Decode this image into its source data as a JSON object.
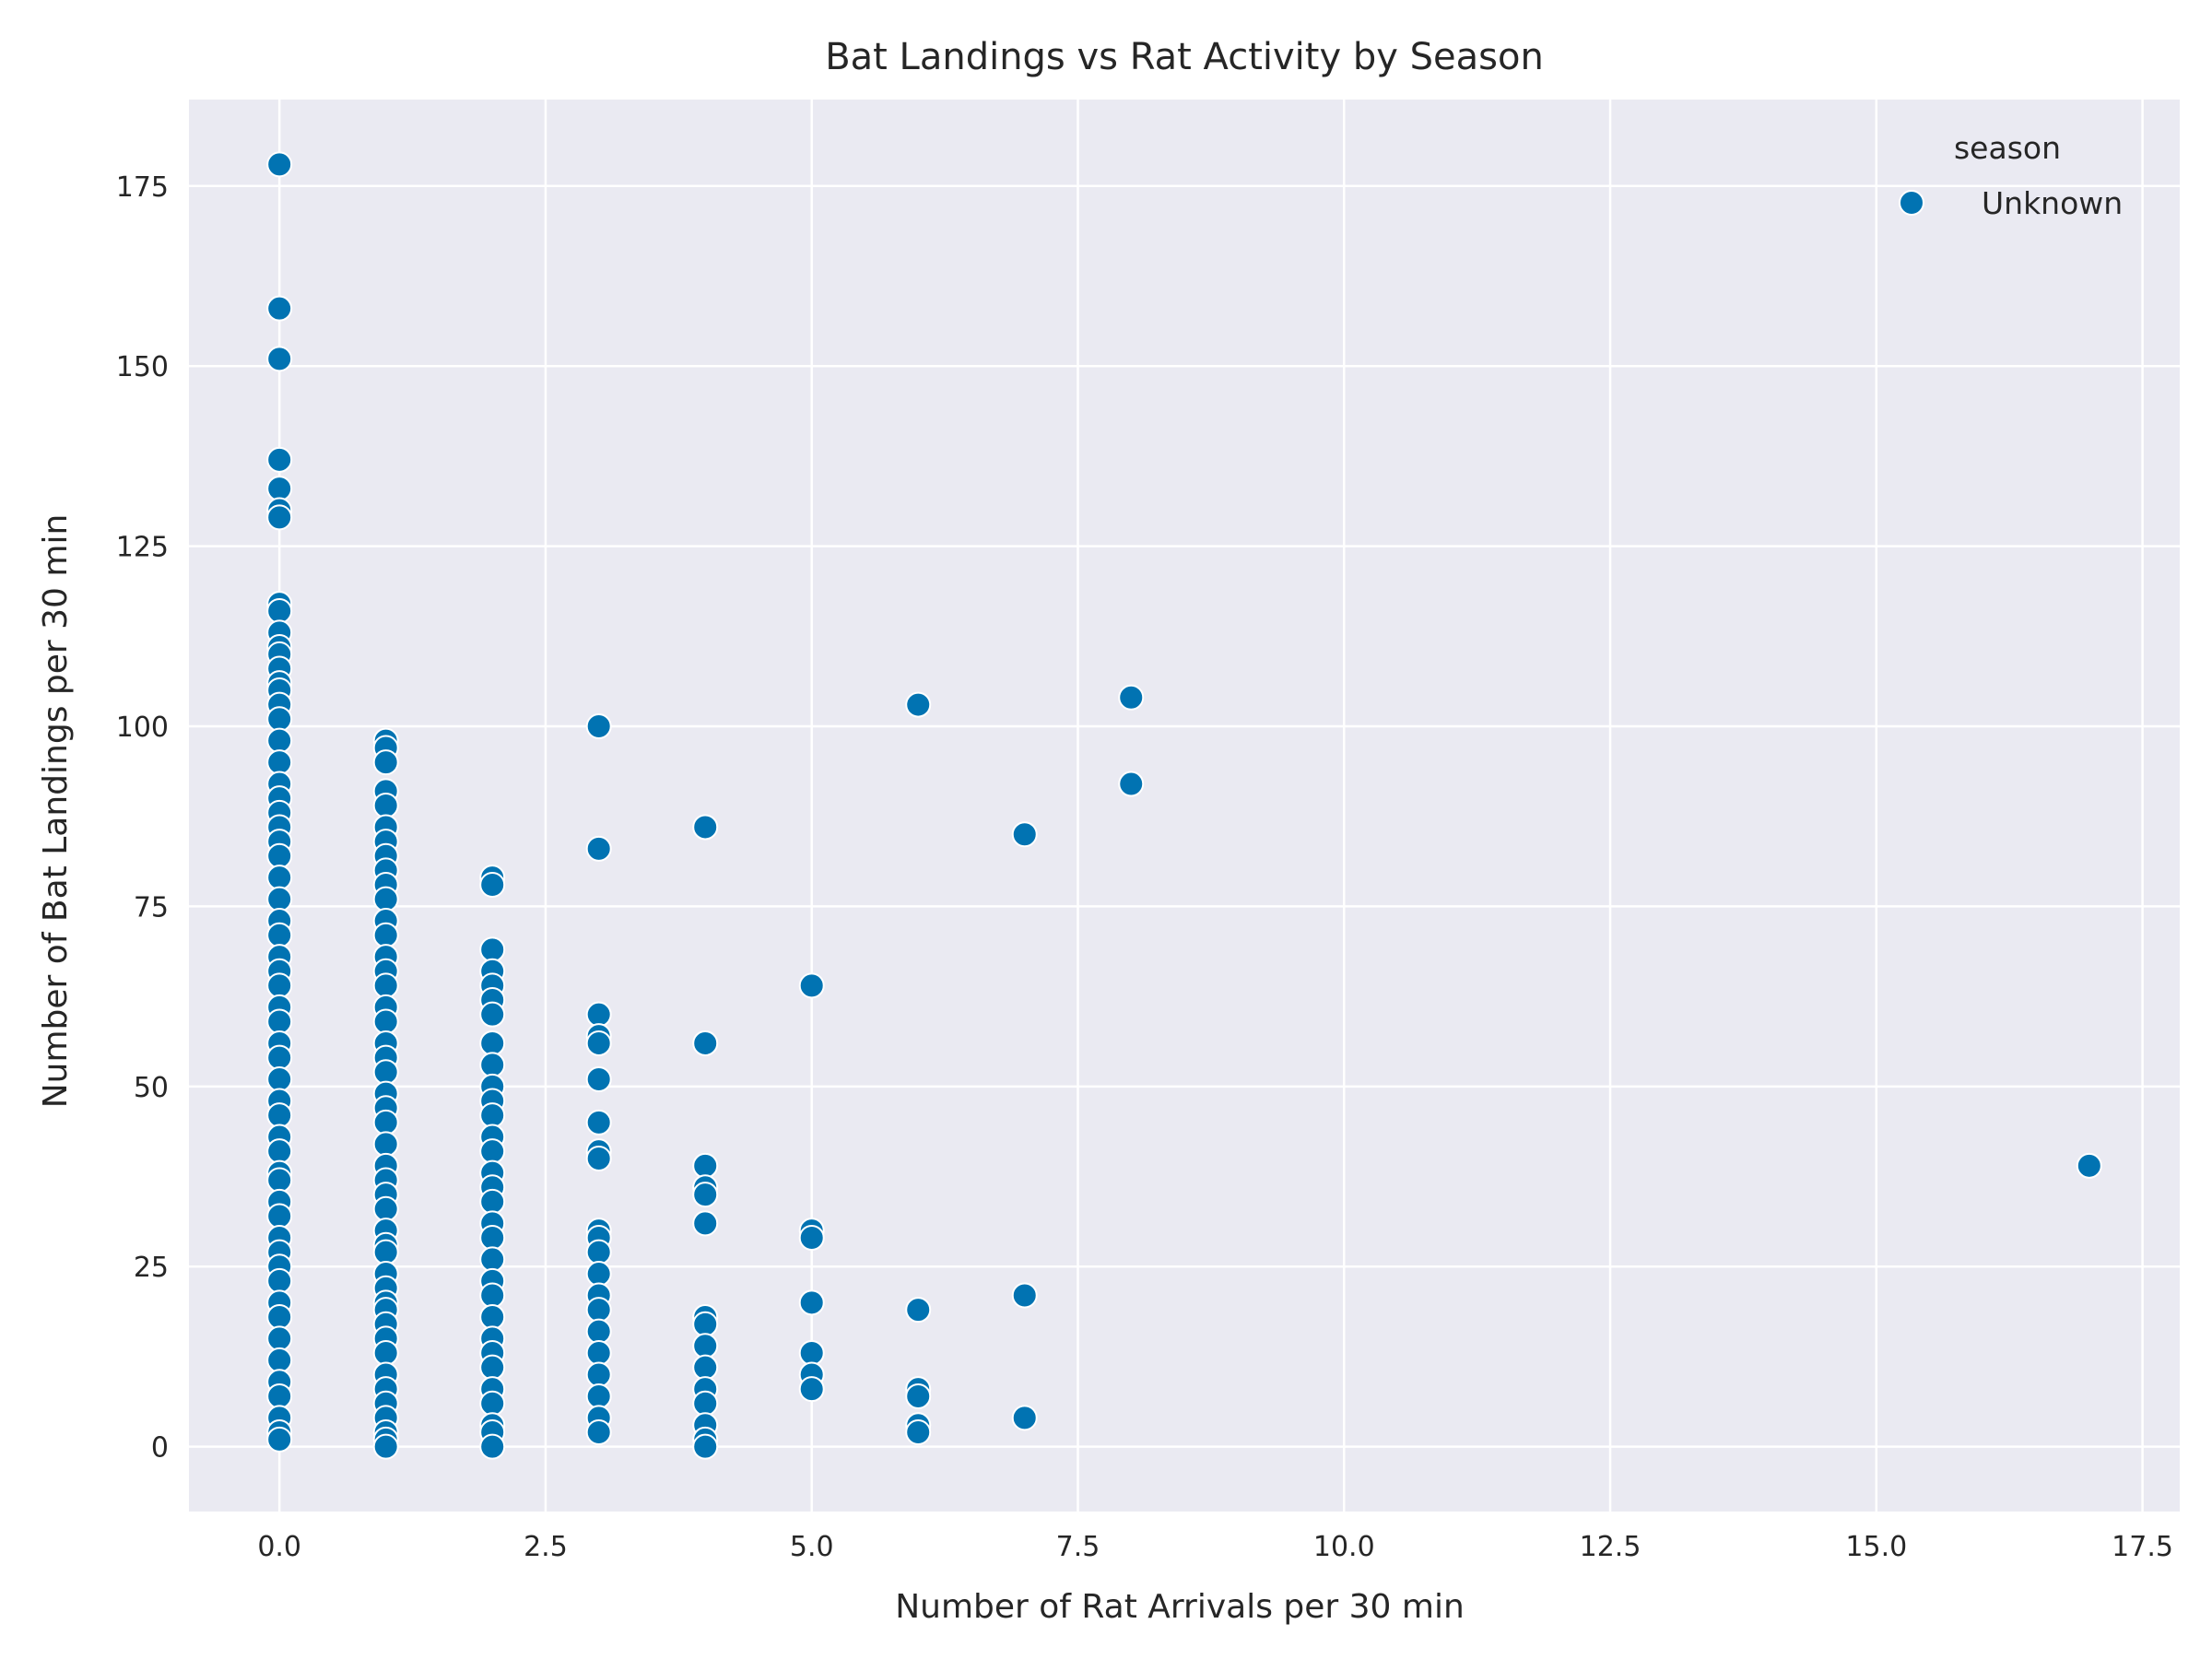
{
  "chart_data": {
    "type": "scatter",
    "title": "Bat Landings vs Rat Activity by Season",
    "xlabel": "Number of Rat Arrivals per 30 min",
    "ylabel": "Number of Bat Landings per 30 min",
    "xlim": [
      -0.85,
      17.85
    ],
    "ylim": [
      -9,
      187
    ],
    "xticks": [
      0,
      2.5,
      5,
      7.5,
      10,
      12.5,
      15,
      17.5
    ],
    "xtick_labels": [
      "0.0",
      "2.5",
      "5.0",
      "7.5",
      "10.0",
      "12.5",
      "15.0",
      "17.5"
    ],
    "yticks": [
      0,
      25,
      50,
      75,
      100,
      125,
      150,
      175
    ],
    "ytick_labels": [
      "0",
      "25",
      "50",
      "75",
      "100",
      "125",
      "150",
      "175"
    ],
    "grid": true,
    "background_color": "#EAEAF2",
    "grid_color": "#FFFFFF",
    "point_color": "#0173B2",
    "point_edge_color": "#FFFFFF",
    "legend": {
      "title": "season",
      "placement": "top-right",
      "entries": [
        "Unknown"
      ]
    },
    "series": [
      {
        "name": "Unknown",
        "points": [
          [
            0,
            178
          ],
          [
            0,
            158
          ],
          [
            0,
            151
          ],
          [
            0,
            137
          ],
          [
            0,
            133
          ],
          [
            0,
            130
          ],
          [
            0,
            129
          ],
          [
            0,
            117
          ],
          [
            0,
            116
          ],
          [
            0,
            113
          ],
          [
            0,
            111
          ],
          [
            0,
            110
          ],
          [
            0,
            108
          ],
          [
            0,
            106
          ],
          [
            0,
            105
          ],
          [
            0,
            103
          ],
          [
            0,
            101
          ],
          [
            0,
            98
          ],
          [
            0,
            95
          ],
          [
            0,
            92
          ],
          [
            0,
            90
          ],
          [
            0,
            88
          ],
          [
            0,
            86
          ],
          [
            0,
            84
          ],
          [
            0,
            82
          ],
          [
            0,
            79
          ],
          [
            0,
            76
          ],
          [
            0,
            73
          ],
          [
            0,
            71
          ],
          [
            0,
            68
          ],
          [
            0,
            66
          ],
          [
            0,
            64
          ],
          [
            0,
            61
          ],
          [
            0,
            59
          ],
          [
            0,
            56
          ],
          [
            0,
            54
          ],
          [
            0,
            51
          ],
          [
            0,
            48
          ],
          [
            0,
            46
          ],
          [
            0,
            43
          ],
          [
            0,
            41
          ],
          [
            0,
            38
          ],
          [
            0,
            37
          ],
          [
            0,
            34
          ],
          [
            0,
            32
          ],
          [
            0,
            29
          ],
          [
            0,
            27
          ],
          [
            0,
            25
          ],
          [
            0,
            23
          ],
          [
            0,
            20
          ],
          [
            0,
            18
          ],
          [
            0,
            15
          ],
          [
            0,
            12
          ],
          [
            0,
            9
          ],
          [
            0,
            7
          ],
          [
            0,
            4
          ],
          [
            0,
            2
          ],
          [
            0,
            1
          ],
          [
            1,
            98
          ],
          [
            1,
            97
          ],
          [
            1,
            95
          ],
          [
            1,
            91
          ],
          [
            1,
            89
          ],
          [
            1,
            86
          ],
          [
            1,
            84
          ],
          [
            1,
            82
          ],
          [
            1,
            80
          ],
          [
            1,
            78
          ],
          [
            1,
            76
          ],
          [
            1,
            73
          ],
          [
            1,
            71
          ],
          [
            1,
            68
          ],
          [
            1,
            66
          ],
          [
            1,
            64
          ],
          [
            1,
            61
          ],
          [
            1,
            59
          ],
          [
            1,
            56
          ],
          [
            1,
            54
          ],
          [
            1,
            52
          ],
          [
            1,
            49
          ],
          [
            1,
            47
          ],
          [
            1,
            45
          ],
          [
            1,
            42
          ],
          [
            1,
            39
          ],
          [
            1,
            37
          ],
          [
            1,
            35
          ],
          [
            1,
            33
          ],
          [
            1,
            30
          ],
          [
            1,
            28
          ],
          [
            1,
            27
          ],
          [
            1,
            24
          ],
          [
            1,
            22
          ],
          [
            1,
            20
          ],
          [
            1,
            19
          ],
          [
            1,
            17
          ],
          [
            1,
            15
          ],
          [
            1,
            13
          ],
          [
            1,
            10
          ],
          [
            1,
            8
          ],
          [
            1,
            6
          ],
          [
            1,
            4
          ],
          [
            1,
            2
          ],
          [
            1,
            1
          ],
          [
            1,
            0
          ],
          [
            2,
            79
          ],
          [
            2,
            78
          ],
          [
            2,
            69
          ],
          [
            2,
            66
          ],
          [
            2,
            64
          ],
          [
            2,
            62
          ],
          [
            2,
            60
          ],
          [
            2,
            56
          ],
          [
            2,
            53
          ],
          [
            2,
            50
          ],
          [
            2,
            48
          ],
          [
            2,
            46
          ],
          [
            2,
            43
          ],
          [
            2,
            41
          ],
          [
            2,
            38
          ],
          [
            2,
            36
          ],
          [
            2,
            34
          ],
          [
            2,
            31
          ],
          [
            2,
            29
          ],
          [
            2,
            26
          ],
          [
            2,
            23
          ],
          [
            2,
            21
          ],
          [
            2,
            18
          ],
          [
            2,
            15
          ],
          [
            2,
            13
          ],
          [
            2,
            11
          ],
          [
            2,
            8
          ],
          [
            2,
            6
          ],
          [
            2,
            3
          ],
          [
            2,
            2
          ],
          [
            2,
            0
          ],
          [
            3,
            100
          ],
          [
            3,
            83
          ],
          [
            3,
            60
          ],
          [
            3,
            57
          ],
          [
            3,
            56
          ],
          [
            3,
            51
          ],
          [
            3,
            45
          ],
          [
            3,
            41
          ],
          [
            3,
            40
          ],
          [
            3,
            30
          ],
          [
            3,
            29
          ],
          [
            3,
            27
          ],
          [
            3,
            24
          ],
          [
            3,
            21
          ],
          [
            3,
            19
          ],
          [
            3,
            16
          ],
          [
            3,
            13
          ],
          [
            3,
            10
          ],
          [
            3,
            7
          ],
          [
            3,
            4
          ],
          [
            3,
            2
          ],
          [
            4,
            86
          ],
          [
            4,
            56
          ],
          [
            4,
            39
          ],
          [
            4,
            36
          ],
          [
            4,
            35
          ],
          [
            4,
            31
          ],
          [
            4,
            18
          ],
          [
            4,
            17
          ],
          [
            4,
            14
          ],
          [
            4,
            11
          ],
          [
            4,
            8
          ],
          [
            4,
            6
          ],
          [
            4,
            3
          ],
          [
            4,
            1
          ],
          [
            4,
            0
          ],
          [
            5,
            64
          ],
          [
            5,
            30
          ],
          [
            5,
            29
          ],
          [
            5,
            20
          ],
          [
            5,
            13
          ],
          [
            5,
            10
          ],
          [
            5,
            8
          ],
          [
            6,
            103
          ],
          [
            6,
            19
          ],
          [
            6,
            8
          ],
          [
            6,
            7
          ],
          [
            6,
            3
          ],
          [
            6,
            2
          ],
          [
            7,
            85
          ],
          [
            7,
            21
          ],
          [
            7,
            4
          ],
          [
            8,
            104
          ],
          [
            8,
            92
          ],
          [
            17,
            39
          ]
        ]
      }
    ]
  }
}
